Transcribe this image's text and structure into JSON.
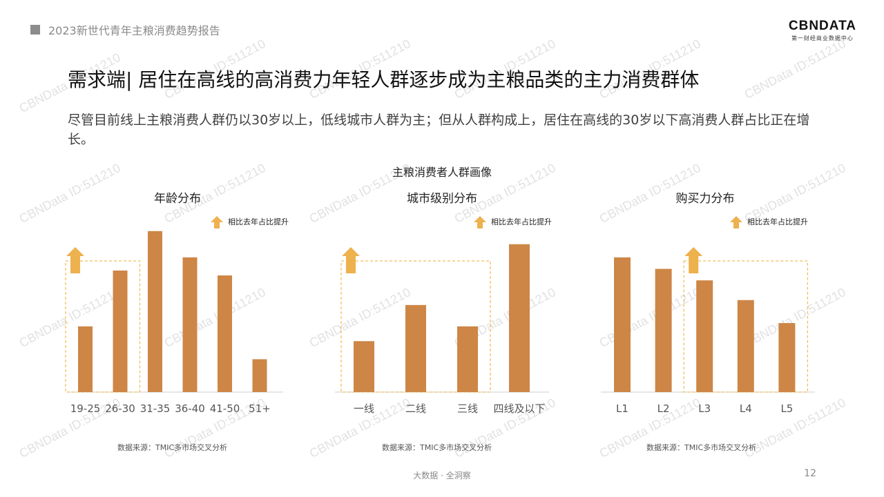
{
  "header": {
    "report_title": "2023新世代青年主粮消费趋势报告"
  },
  "logo": {
    "name": "CBNDATA",
    "tagline": "第一财经商业数据中心"
  },
  "slide": {
    "title": "需求端| 居住在高线的高消费力年轻人群逐步成为主粮品类的主力消费群体",
    "subtitle": "尽管目前线上主粮消费人群仍以30岁以上，低线城市人群为主；但从人群构成上，居住在高线的30岁以下高消费人群占比正在增长。",
    "panel_title": "主粮消费者人群画像",
    "legend_note": "相比去年占比提升",
    "source": "数据来源：TMIC多市场交叉分析",
    "footer": "大数据 · 全洞察",
    "page": "12",
    "watermark": "CBNData ID:511210"
  },
  "colors": {
    "bar": "#CD8646",
    "highlight": "#F0BE5A",
    "arrow": "#EDB14E",
    "axis": "#cccccc"
  },
  "chart_data": [
    {
      "type": "bar",
      "title": "年龄分布",
      "categories": [
        "19-25",
        "26-30",
        "31-35",
        "36-40",
        "41-50",
        "51+"
      ],
      "values": [
        40,
        74,
        98,
        82,
        71,
        20
      ],
      "highlighted": [
        "19-25",
        "26-30"
      ],
      "ylim": [
        0,
        100
      ]
    },
    {
      "type": "bar",
      "title": "城市级别分布",
      "categories": [
        "一线",
        "二线",
        "三线",
        "四线及以下"
      ],
      "values": [
        31,
        53,
        40,
        90
      ],
      "highlighted": [
        "一线",
        "二线",
        "三线"
      ],
      "ylim": [
        0,
        100
      ]
    },
    {
      "type": "bar",
      "title": "购买力分布",
      "categories": [
        "L1",
        "L2",
        "L3",
        "L4",
        "L5"
      ],
      "values": [
        82,
        75,
        68,
        56,
        42
      ],
      "highlighted": [
        "L3",
        "L4",
        "L5"
      ],
      "ylim": [
        0,
        100
      ]
    }
  ]
}
